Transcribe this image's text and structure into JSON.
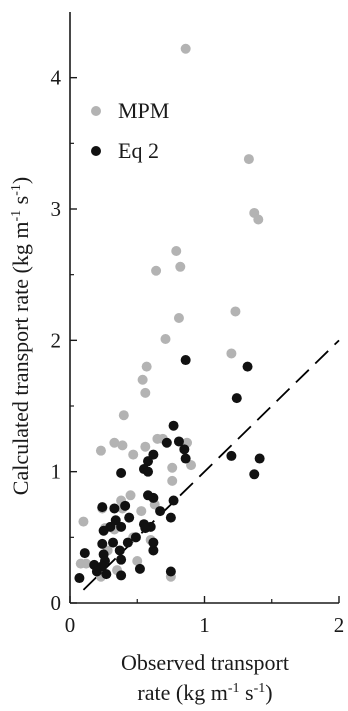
{
  "chart_data": {
    "type": "scatter",
    "title": "",
    "xlabel_line1": "Observed transport",
    "xlabel_line2": "rate (kg m",
    "xlabel_sup1": "-1",
    "xlabel_mid": " s",
    "xlabel_sup2": "-1",
    "xlabel_end": ")",
    "ylabel_main": "Calculated transport rate (kg m",
    "ylabel_sup1": "-1",
    "ylabel_mid": " s",
    "ylabel_sup2": "-1",
    "ylabel_end": ")",
    "xlim": [
      0,
      2
    ],
    "ylim": [
      0,
      4.5
    ],
    "xticks": [
      0,
      1,
      2
    ],
    "yticks": [
      0,
      1,
      2,
      3,
      4
    ],
    "legend_position": "top-left",
    "reference_line": {
      "style": "dashed",
      "color": "#000000",
      "points": [
        [
          0.1,
          0.1
        ],
        [
          2,
          2
        ]
      ]
    },
    "series": [
      {
        "name": "MPM",
        "color": "#b3b3b3",
        "points": [
          [
            0.86,
            4.22
          ],
          [
            1.33,
            3.38
          ],
          [
            1.37,
            2.97
          ],
          [
            1.4,
            2.92
          ],
          [
            0.79,
            2.68
          ],
          [
            0.82,
            2.56
          ],
          [
            0.64,
            2.53
          ],
          [
            1.23,
            2.22
          ],
          [
            0.81,
            2.17
          ],
          [
            0.71,
            2.01
          ],
          [
            1.2,
            1.9
          ],
          [
            0.57,
            1.8
          ],
          [
            0.54,
            1.7
          ],
          [
            0.56,
            1.6
          ],
          [
            0.4,
            1.43
          ],
          [
            0.65,
            1.25
          ],
          [
            0.69,
            1.25
          ],
          [
            0.33,
            1.22
          ],
          [
            0.39,
            1.2
          ],
          [
            0.87,
            1.22
          ],
          [
            0.56,
            1.19
          ],
          [
            0.23,
            1.16
          ],
          [
            0.47,
            1.13
          ],
          [
            0.76,
            1.03
          ],
          [
            0.9,
            1.05
          ],
          [
            0.45,
            0.82
          ],
          [
            0.38,
            0.78
          ],
          [
            0.24,
            0.72
          ],
          [
            0.39,
            0.72
          ],
          [
            0.63,
            0.75
          ],
          [
            0.76,
            0.93
          ],
          [
            0.53,
            0.7
          ],
          [
            0.1,
            0.62
          ],
          [
            0.26,
            0.57
          ],
          [
            0.33,
            0.56
          ],
          [
            0.47,
            0.5
          ],
          [
            0.6,
            0.48
          ],
          [
            0.28,
            0.4
          ],
          [
            0.08,
            0.3
          ],
          [
            0.12,
            0.3
          ],
          [
            0.35,
            0.25
          ],
          [
            0.23,
            0.2
          ],
          [
            0.75,
            0.2
          ],
          [
            0.5,
            0.32
          ]
        ]
      },
      {
        "name": "Eq 2",
        "color": "#111111",
        "points": [
          [
            0.86,
            1.85
          ],
          [
            1.32,
            1.8
          ],
          [
            1.24,
            1.56
          ],
          [
            0.77,
            1.35
          ],
          [
            0.72,
            1.22
          ],
          [
            0.81,
            1.23
          ],
          [
            0.85,
            1.17
          ],
          [
            0.62,
            1.13
          ],
          [
            0.58,
            1.08
          ],
          [
            1.2,
            1.12
          ],
          [
            1.41,
            1.1
          ],
          [
            0.86,
            1.1
          ],
          [
            0.55,
            1.02
          ],
          [
            0.58,
            1.0
          ],
          [
            0.38,
            0.99
          ],
          [
            1.37,
            0.98
          ],
          [
            0.58,
            0.82
          ],
          [
            0.62,
            0.8
          ],
          [
            0.24,
            0.73
          ],
          [
            0.41,
            0.74
          ],
          [
            0.33,
            0.72
          ],
          [
            0.77,
            0.78
          ],
          [
            0.34,
            0.63
          ],
          [
            0.44,
            0.65
          ],
          [
            0.55,
            0.6
          ],
          [
            0.3,
            0.58
          ],
          [
            0.38,
            0.58
          ],
          [
            0.75,
            0.65
          ],
          [
            0.6,
            0.58
          ],
          [
            0.25,
            0.55
          ],
          [
            0.67,
            0.7
          ],
          [
            0.49,
            0.5
          ],
          [
            0.56,
            0.57
          ],
          [
            0.24,
            0.45
          ],
          [
            0.32,
            0.46
          ],
          [
            0.43,
            0.46
          ],
          [
            0.11,
            0.38
          ],
          [
            0.25,
            0.37
          ],
          [
            0.37,
            0.4
          ],
          [
            0.26,
            0.32
          ],
          [
            0.18,
            0.29
          ],
          [
            0.38,
            0.33
          ],
          [
            0.24,
            0.28
          ],
          [
            0.52,
            0.26
          ],
          [
            0.27,
            0.22
          ],
          [
            0.38,
            0.21
          ],
          [
            0.07,
            0.19
          ],
          [
            0.2,
            0.24
          ],
          [
            0.62,
            0.4
          ],
          [
            0.62,
            0.46
          ],
          [
            0.75,
            0.24
          ]
        ]
      }
    ]
  }
}
